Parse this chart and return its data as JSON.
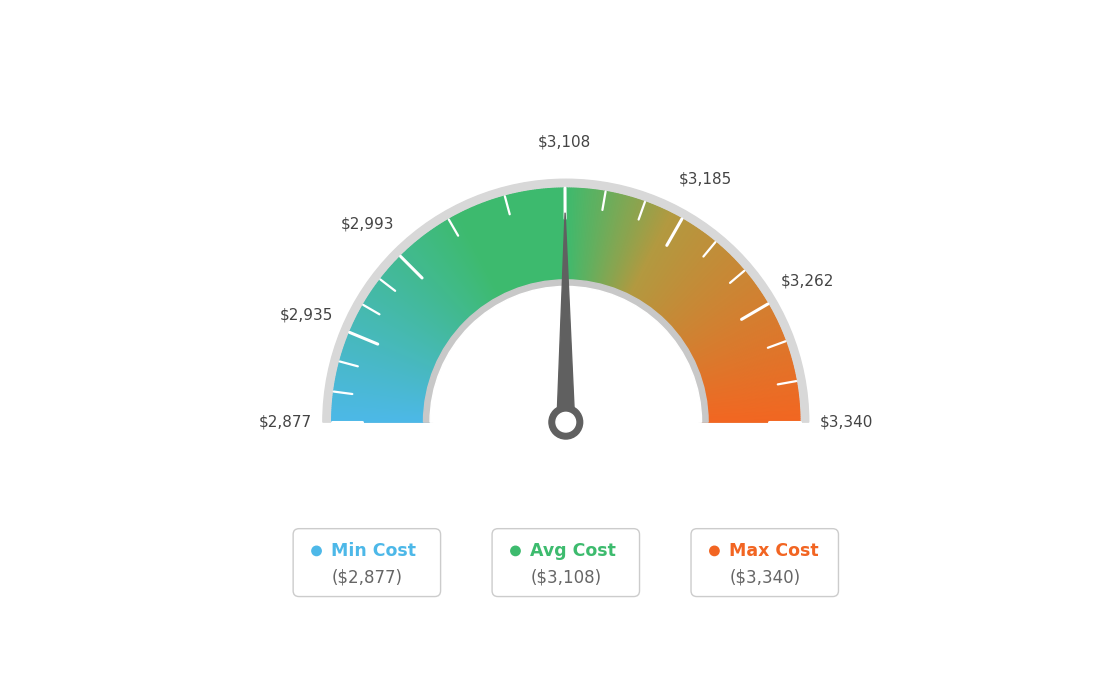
{
  "min_val": 2877,
  "avg_val": 3108,
  "max_val": 3340,
  "tick_labels": [
    "$2,877",
    "$2,935",
    "$2,993",
    "$3,108",
    "$3,185",
    "$3,262",
    "$3,340"
  ],
  "tick_values": [
    2877,
    2935,
    2993,
    3108,
    3185,
    3262,
    3340
  ],
  "minor_ticks_per_major": 3,
  "legend": [
    {
      "label": "Min Cost",
      "value": "($2,877)",
      "color": "#4db8e8"
    },
    {
      "label": "Avg Cost",
      "value": "($3,108)",
      "color": "#3dbb6e"
    },
    {
      "label": "Max Cost",
      "value": "($3,340)",
      "color": "#f26522"
    }
  ],
  "bg_color": "#ffffff",
  "needle_color": "#606060",
  "color_stops": [
    [
      0.0,
      [
        0.3,
        0.72,
        0.91
      ]
    ],
    [
      0.35,
      [
        0.24,
        0.73,
        0.43
      ]
    ],
    [
      0.5,
      [
        0.24,
        0.73,
        0.43
      ]
    ],
    [
      0.65,
      [
        0.7,
        0.6,
        0.25
      ]
    ],
    [
      1.0,
      [
        0.95,
        0.4,
        0.13
      ]
    ]
  ]
}
